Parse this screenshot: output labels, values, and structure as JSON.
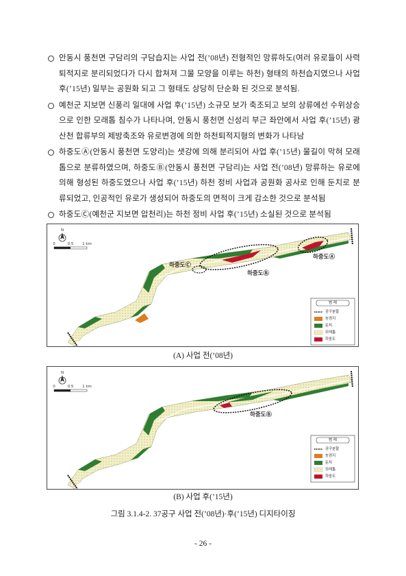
{
  "bullets": [
    "안동시 풍천면 구담리의 구담습지는 사업 전(’08년) 전형적인 망류하도(여러 유로들이 사력퇴적지로 분리되었다가 다시 합쳐져 그물 모양을 이루는 하천) 형태의 하천습지였으나 사업 후(’15년) 일부는 공원화 되고 그 형태도 상당히 단순화 된 것으로 분석됨.",
    "예천군 지보면 신풍리 일대에 사업 후(’15년) 소규모 보가 축조되고 보의 상류에선 수위상승으로 인한 모래톱 침수가 나타나며, 안동시 풍천면 신성리 부근 좌안에서 사업 후(’15년) 광산천 합류부의 제방축조와 유로변경에 의한 하천퇴적지형의 변화가 나타남",
    "하중도Ⓐ(안동시 풍천면 도양리)는 샛강에 의해 분리되어 사업 후(’15년) 물길이 막혀 모래톱으로 분류하였으며, 하중도Ⓑ(안동시 풍천면 구담리)는 사업 전(’08년) 망류하는 유로에 의해 형성된 하중도였으나 사업 후(’15년) 하천 정비 사업과 공원화 공사로 인해 둔치로 분류되었고, 인공적인 유로가 생성되어 하중도의 면적이 크게 감소한 것으로 분석됨",
    "하중도Ⓒ(예천군 지보면 압천리)는 하천 정비 사업 후(’15년) 소실된 것으로 분석됨"
  ],
  "figures": [
    {
      "north": "N",
      "scale": [
        "0",
        "0.5",
        "1 km"
      ],
      "labels": [
        "하중도Ⓒ",
        "하중도Ⓑ",
        "하중도Ⓐ"
      ],
      "legend_title": "범 례",
      "legend": [
        "공구분할",
        "농경지",
        "둔치",
        "모래톱",
        "하중도"
      ],
      "caption": "(A) 사업 전(’08년)"
    },
    {
      "north": "N",
      "scale": [
        "0",
        "0.5",
        "1 km"
      ],
      "labels": [
        "하중도Ⓑ"
      ],
      "legend_title": "범 례",
      "legend": [
        "공구분할",
        "농경지",
        "둔치",
        "모래톱",
        "하중도"
      ],
      "caption": "(B) 사업 후(’15년)"
    }
  ],
  "figure_caption": "그림 3.1.4-2. 37공구 사업 전(’08년)·후(’15년) 디지타이징",
  "page_number": "- 26 -"
}
